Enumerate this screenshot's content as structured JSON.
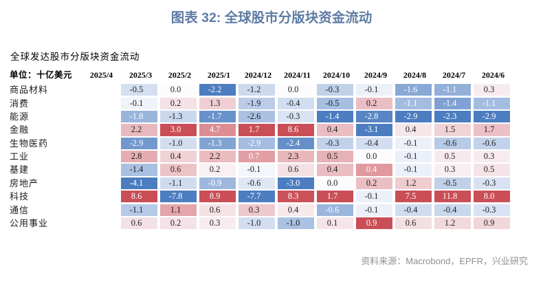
{
  "title": "图表 32: 全球股市分版块资金流动",
  "chart_data": {
    "type": "heatmap",
    "title": "图表 32: 全球股市分版块资金流动",
    "subtitle": "全球发达股市分版块资金流动",
    "unit_label": "单位：十亿美元",
    "columns": [
      "2025/4",
      "2025/3",
      "2025/2",
      "2025/1",
      "2024/12",
      "2024/11",
      "2024/10",
      "2024/9",
      "2024/8",
      "2024/7",
      "2024/6"
    ],
    "series": [
      {
        "name": "商品材料",
        "values": [
          null,
          -0.5,
          0.0,
          -2.2,
          -1.2,
          0.0,
          -0.3,
          -0.1,
          -1.6,
          -1.1,
          0.3
        ]
      },
      {
        "name": "消费",
        "values": [
          null,
          -0.1,
          0.2,
          1.3,
          -1.9,
          -0.4,
          -0.5,
          0.2,
          -1.1,
          -1.4,
          -1.1
        ]
      },
      {
        "name": "能源",
        "values": [
          null,
          -1.8,
          -1.3,
          -1.7,
          -2.6,
          -0.3,
          -1.4,
          -2.8,
          -2.9,
          -2.3,
          -2.9
        ]
      },
      {
        "name": "金融",
        "values": [
          null,
          2.2,
          3.0,
          4.7,
          1.7,
          8.6,
          0.4,
          -3.1,
          0.4,
          1.5,
          1.7
        ]
      },
      {
        "name": "生物医药",
        "values": [
          null,
          -2.9,
          -1.0,
          -1.3,
          -2.9,
          -2.4,
          -0.3,
          -0.4,
          -0.1,
          -0.6,
          -0.6
        ]
      },
      {
        "name": "工业",
        "values": [
          null,
          2.8,
          0.4,
          2.2,
          0.7,
          2.3,
          0.5,
          0.0,
          -0.1,
          0.5,
          0.3
        ]
      },
      {
        "name": "基建",
        "values": [
          null,
          -1.4,
          0.6,
          0.2,
          -0.1,
          0.6,
          0.4,
          0.4,
          -0.1,
          0.3,
          0.5
        ]
      },
      {
        "name": "房地产",
        "values": [
          null,
          -4.1,
          -1.1,
          -0.9,
          -0.6,
          -3.0,
          0.0,
          0.2,
          1.2,
          -0.5,
          -0.3
        ]
      },
      {
        "name": "科技",
        "values": [
          null,
          8.6,
          -7.8,
          8.9,
          -7.7,
          8.3,
          1.7,
          -0.1,
          7.5,
          11.8,
          8.0
        ]
      },
      {
        "name": "通信",
        "values": [
          null,
          -1.1,
          1.1,
          0.6,
          0.3,
          0.4,
          -0.6,
          -0.1,
          -0.4,
          -0.4,
          -0.3
        ]
      },
      {
        "name": "公用事业",
        "values": [
          null,
          0.6,
          0.2,
          0.3,
          -1.0,
          -1.0,
          0.1,
          0.9,
          0.6,
          1.2,
          0.9
        ]
      }
    ],
    "value_format": "one_decimal",
    "color_scale": "per-column diverging: column max -> red, 0 -> white, column min -> blue",
    "legend_position": "none",
    "grid": false,
    "source": "资料来源：Macrobond，EPFR，兴业研究"
  },
  "colors": {
    "title_blue": "#5e7ca4",
    "heatmap_max_red": "#c94e56",
    "heatmap_mid_white": "#fcfcff",
    "heatmap_min_blue": "#4c7dc0",
    "cell_text_dark": "#1f1f1f",
    "cell_text_light": "#ffffff",
    "source_gray": "#8f8f8f"
  }
}
